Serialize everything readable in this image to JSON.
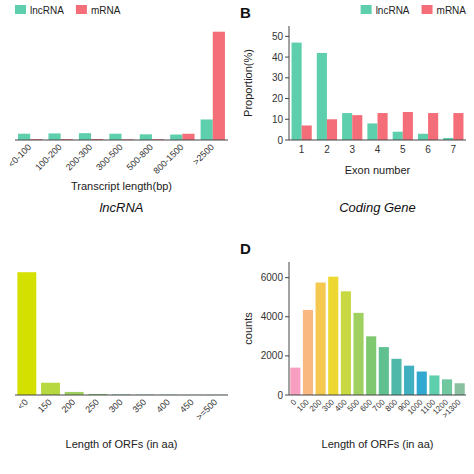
{
  "chart_data": [
    {
      "type": "bar",
      "title": "lncRNA",
      "xlabel": "Transcript length(bp)",
      "categories": [
        "<0-100",
        "100-200",
        "200-300",
        "300-500",
        "500-800",
        "800-1500",
        ">2500"
      ],
      "series": [
        {
          "name": "lncRNA",
          "color": "#5ECFAD",
          "values": [
            5.5,
            5.8,
            6.0,
            5.5,
            5.0,
            4.8,
            18.0
          ]
        },
        {
          "name": "mRNA",
          "color": "#F46E7A",
          "values": [
            0.8,
            0.8,
            0.9,
            0.6,
            0.7,
            5.5,
            95.0
          ]
        }
      ],
      "ylim": [
        0,
        100
      ],
      "tick_labels": "x",
      "legend": "upper left"
    },
    {
      "type": "bar",
      "title": "Coding Gene",
      "xlabel": "Exon number",
      "ylabel": "Proportion(%)",
      "categories": [
        "1",
        "2",
        "3",
        "4",
        "5",
        "6",
        "7"
      ],
      "series": [
        {
          "name": "lncRNA",
          "color": "#5ECFAD",
          "values": [
            47.0,
            42.0,
            13.0,
            8.0,
            4.0,
            3.0,
            1.0
          ]
        },
        {
          "name": "mRNA",
          "color": "#F46E7A",
          "values": [
            7.0,
            10.0,
            12.0,
            13.0,
            13.5,
            13.0,
            13.0
          ]
        }
      ],
      "ylim": [
        0,
        55
      ],
      "yticks": [
        0,
        10,
        20,
        30,
        40,
        50
      ],
      "legend": "upper right",
      "annotations": [
        "B"
      ]
    },
    {
      "type": "bar",
      "xlabel": "Length of ORFs (in aa)",
      "categories": [
        "<0",
        "150",
        "200",
        "250",
        "300",
        "350",
        "400",
        "450",
        ">=500"
      ],
      "values": [
        120,
        12,
        3,
        1,
        0.5,
        0.3,
        0.2,
        0.1,
        0.1
      ],
      "colors": [
        "#d4e000",
        "#b8d840",
        "#a0d060",
        "#88c878",
        "#70c090",
        "#58b8a8",
        "#40b0b8",
        "#28a8c8",
        "#10a0d0"
      ],
      "ylim": [
        0,
        130
      ],
      "tick_labels": "x"
    },
    {
      "type": "bar",
      "xlabel": "Length of ORFs (in aa)",
      "ylabel": "counts",
      "categories": [
        "0",
        "100",
        "200",
        "300",
        "400",
        "500",
        "600",
        "700",
        "800",
        "900",
        "1000",
        "1100",
        "1200",
        ">1300"
      ],
      "values": [
        1400,
        4350,
        5750,
        6050,
        5300,
        4200,
        3000,
        2450,
        1850,
        1500,
        1200,
        1000,
        800,
        600
      ],
      "colors": [
        "#F89EC0",
        "#F8B880",
        "#F5C850",
        "#ECD830",
        "#C8D840",
        "#A0D060",
        "#80C870",
        "#60C090",
        "#50B8A8",
        "#40B0C0",
        "#30A8D0",
        "#5ECFAD",
        "#70C8A0",
        "#88C0A0"
      ],
      "ylim": [
        0,
        6800
      ],
      "yticks": [
        0,
        2000,
        4000,
        6000
      ],
      "annotations": [
        "D"
      ]
    }
  ]
}
